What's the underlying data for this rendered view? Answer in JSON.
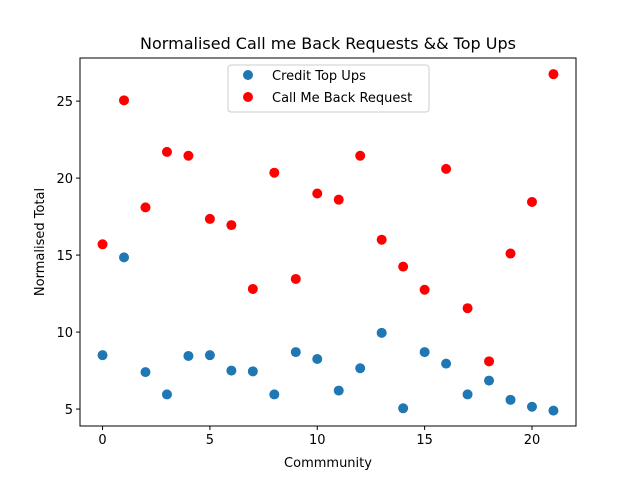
{
  "chart_data": {
    "type": "scatter",
    "title": "Normalised Call me Back Requests && Top Ups",
    "xlabel": "Commmunity",
    "ylabel": "Normalised Total",
    "xlim": [
      -1.05,
      22.05
    ],
    "ylim": [
      3.9,
      27.8
    ],
    "xticks": [
      0,
      5,
      10,
      15,
      20
    ],
    "yticks": [
      5,
      10,
      15,
      20,
      25
    ],
    "grid": false,
    "legend_position": "upper center",
    "series": [
      {
        "name": "Credit Top Ups",
        "color": "#1f77b4",
        "x": [
          0,
          1,
          2,
          3,
          4,
          5,
          6,
          7,
          8,
          9,
          10,
          11,
          12,
          13,
          14,
          15,
          16,
          17,
          18,
          19,
          20,
          21
        ],
        "y": [
          8.5,
          14.85,
          7.4,
          5.95,
          8.45,
          8.5,
          7.5,
          7.45,
          5.95,
          8.7,
          8.25,
          6.2,
          7.65,
          9.95,
          5.05,
          8.7,
          7.95,
          5.95,
          6.85,
          5.6,
          5.15,
          4.9
        ]
      },
      {
        "name": "Call Me Back Request",
        "color": "#ff0000",
        "x": [
          0,
          1,
          2,
          3,
          4,
          5,
          6,
          7,
          8,
          9,
          10,
          11,
          12,
          13,
          14,
          15,
          16,
          17,
          18,
          19,
          20,
          21
        ],
        "y": [
          15.7,
          25.05,
          18.1,
          21.7,
          21.45,
          17.35,
          16.95,
          12.8,
          20.35,
          13.45,
          19.0,
          18.6,
          21.45,
          16.0,
          14.25,
          12.75,
          20.6,
          11.55,
          8.1,
          15.1,
          18.45,
          26.75
        ]
      }
    ]
  }
}
